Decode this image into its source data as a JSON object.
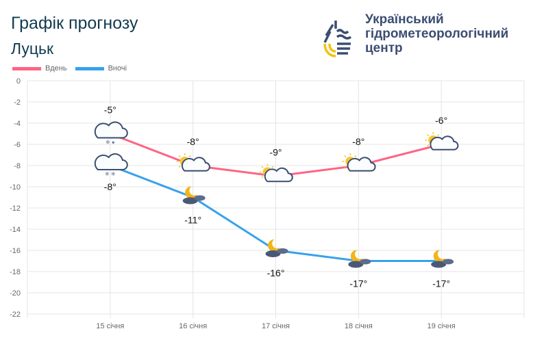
{
  "header": {
    "title": "Графік прогнозу",
    "city": "Луцьк"
  },
  "logo": {
    "org_line1": "Український",
    "org_line2": "гідрометеорологічний",
    "org_line3": "центр"
  },
  "colors": {
    "day": "#ff6384",
    "night": "#36a2eb"
  },
  "chart_data": {
    "type": "line",
    "categories": [
      "15 січня",
      "16 січня",
      "17 січня",
      "18 січня",
      "19 січня"
    ],
    "series": [
      {
        "name": "Вдень",
        "values": [
          -5,
          -8,
          -9,
          -8,
          -6
        ],
        "labels": [
          "-5°",
          "-8°",
          "-9°",
          "-8°",
          "-6°"
        ],
        "icons": [
          "cloud-snow-rain-icon",
          "sun-cloud-icon",
          "sun-cloud-icon",
          "sun-cloud-icon",
          "sun-cloud-icon"
        ]
      },
      {
        "name": "Вночі",
        "values": [
          -8,
          -11,
          -16,
          -17,
          -17
        ],
        "labels": [
          "-8°",
          "-11°",
          "-16°",
          "-17°",
          "-17°"
        ],
        "icons": [
          "cloud-snow-icon",
          "moon-cloud-icon",
          "moon-cloud-icon",
          "moon-cloud-icon",
          "moon-cloud-icon"
        ]
      }
    ],
    "ylim": [
      -22,
      0
    ],
    "yticks": [
      "0",
      "-2",
      "-4",
      "-6",
      "-8",
      "-10",
      "-12",
      "-14",
      "-16",
      "-18",
      "-20",
      "-22"
    ],
    "grid": true,
    "legend": "top-left"
  }
}
